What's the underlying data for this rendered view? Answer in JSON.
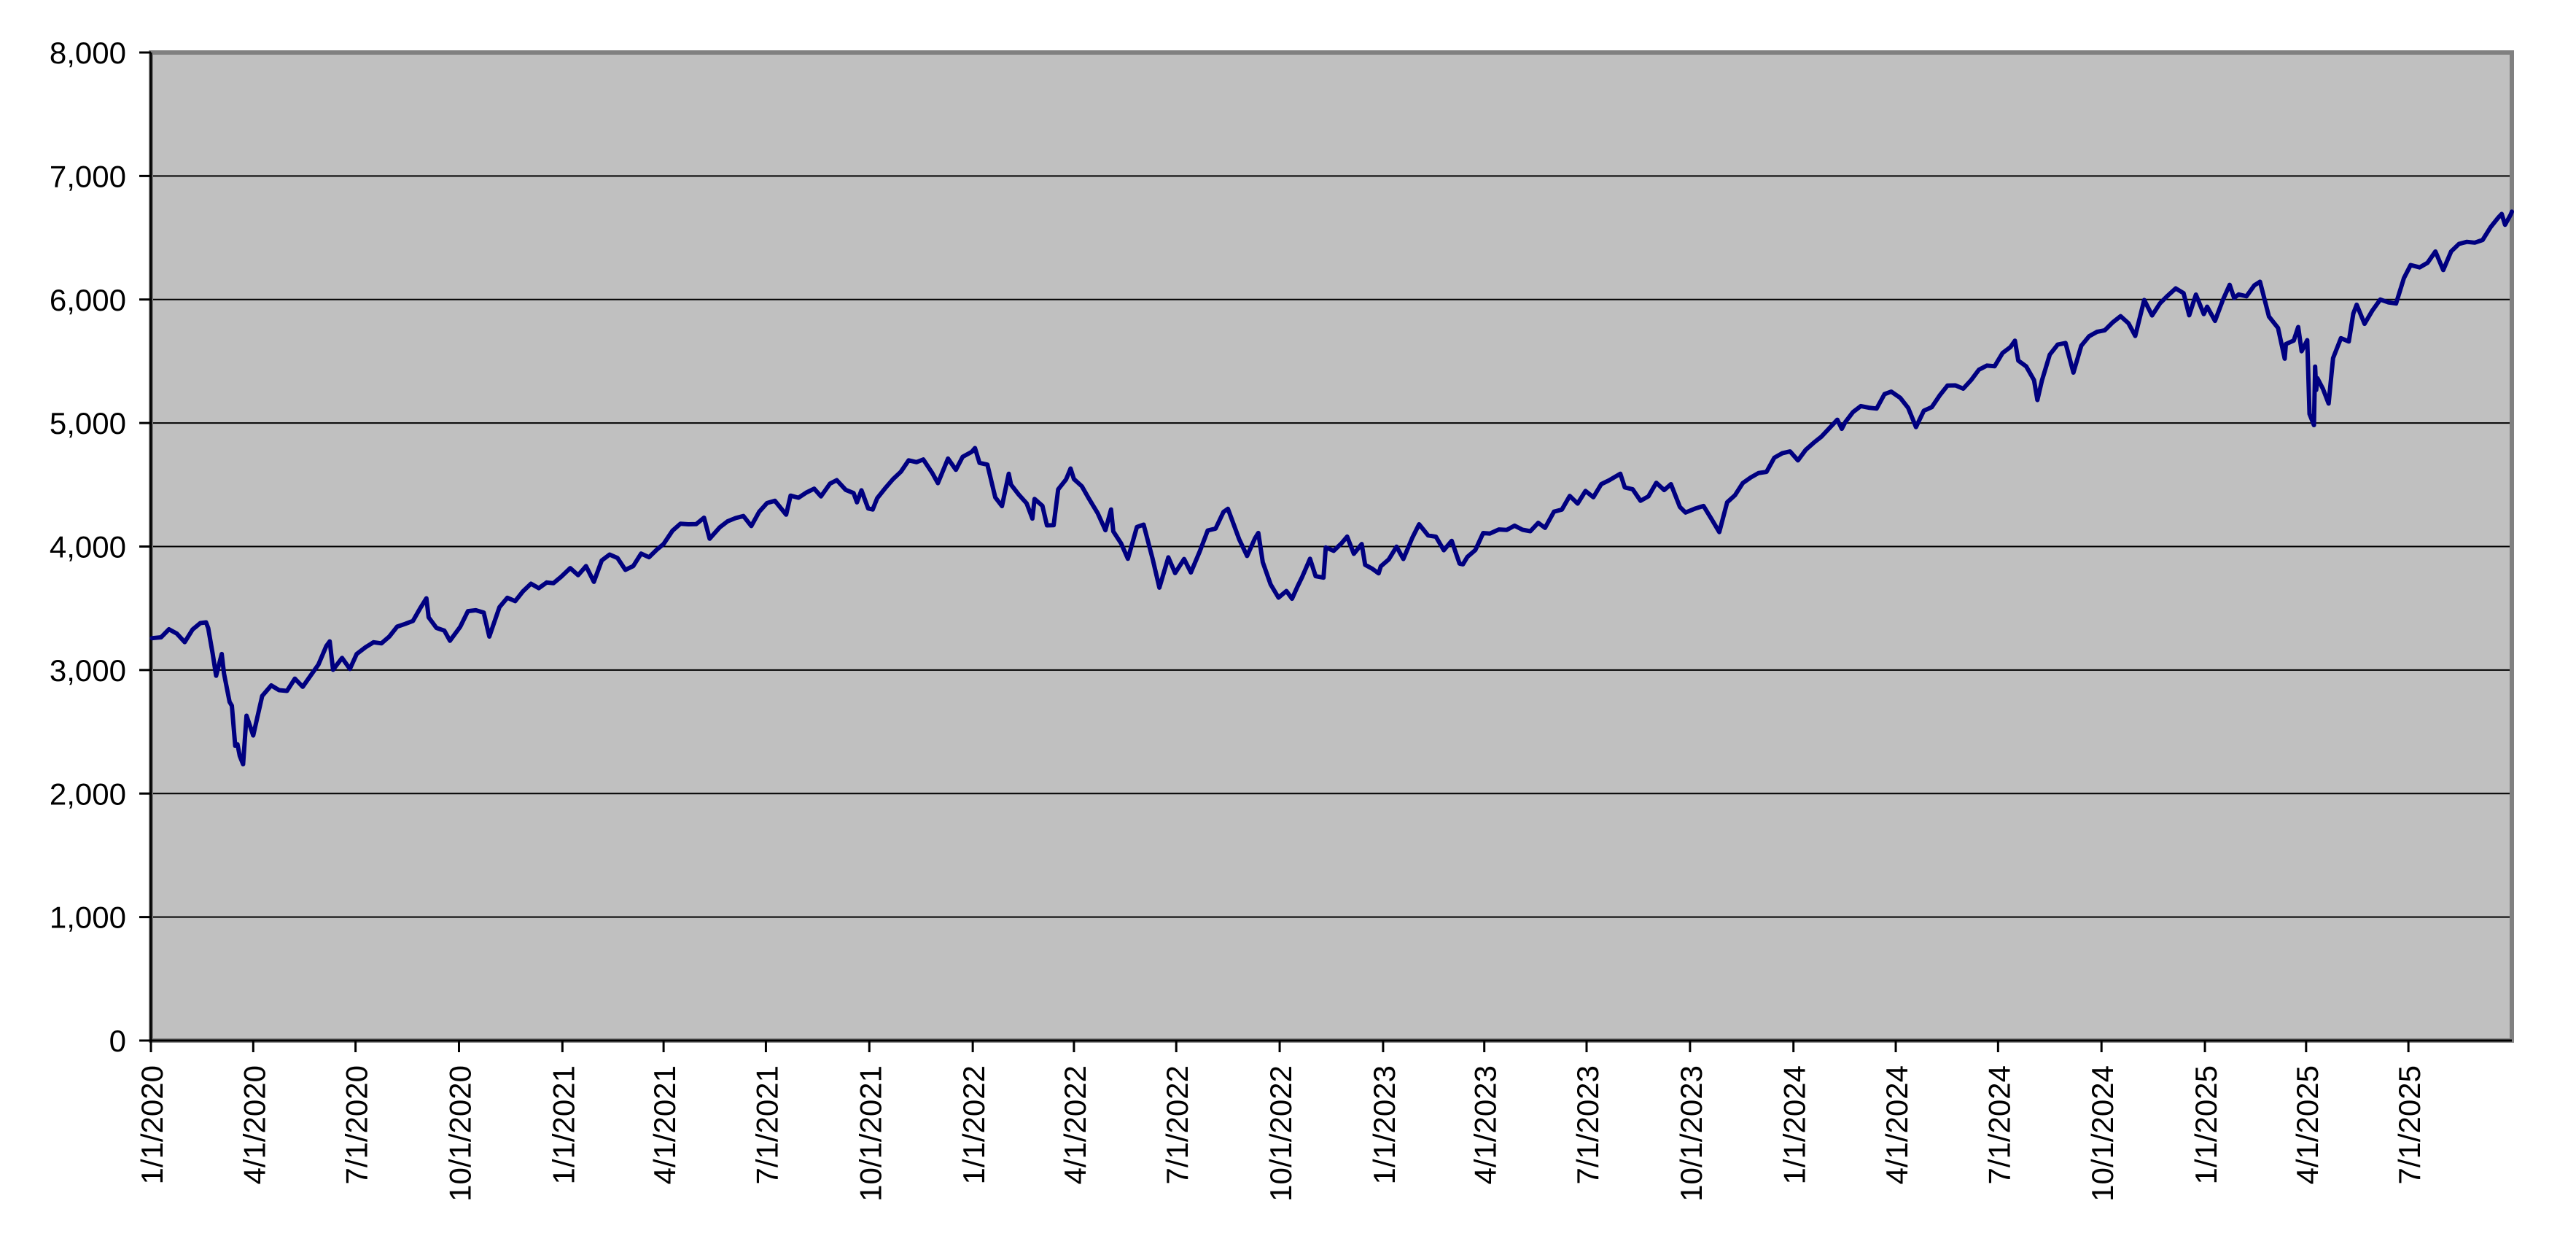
{
  "chart_data": {
    "type": "line",
    "grid": true,
    "legend": false,
    "ylim": [
      0,
      8000
    ],
    "xlim": [
      "1/1/2020",
      "10/1/2025"
    ],
    "y_ticks": [
      8000,
      7000,
      6000,
      5000,
      4000,
      3000,
      2000,
      1000,
      0
    ],
    "y_tick_labels": [
      "8,000",
      "7,000",
      "6,000",
      "5,000",
      "4,000",
      "3,000",
      "2,000",
      "1,000",
      "0"
    ],
    "x_tick_labels": [
      "1/1/2020",
      "4/1/2020",
      "7/1/2020",
      "10/1/2020",
      "1/1/2021",
      "4/1/2021",
      "7/1/2021",
      "10/1/2021",
      "1/1/2022",
      "4/1/2022",
      "7/1/2022",
      "10/1/2022",
      "1/1/2023",
      "4/1/2023",
      "7/1/2023",
      "10/1/2023",
      "1/1/2024",
      "4/1/2024",
      "7/1/2024",
      "10/1/2024",
      "1/1/2025",
      "4/1/2025",
      "7/1/2025"
    ],
    "colors": {
      "line": "#000080",
      "plot_bg": "#C0C0C0",
      "plot_border": "#808080",
      "gridline": "#000000",
      "axis": "#000000",
      "label": "#000000",
      "page_bg": "#FFFFFF"
    },
    "points": [
      [
        "1/2/2020",
        3258
      ],
      [
        "1/10/2020",
        3265
      ],
      [
        "1/17/2020",
        3330
      ],
      [
        "1/24/2020",
        3295
      ],
      [
        "1/31/2020",
        3226
      ],
      [
        "2/7/2020",
        3328
      ],
      [
        "2/14/2020",
        3380
      ],
      [
        "2/19/2020",
        3386
      ],
      [
        "2/21/2020",
        3338
      ],
      [
        "2/25/2020",
        3128
      ],
      [
        "2/28/2020",
        2954
      ],
      [
        "3/4/2020",
        3130
      ],
      [
        "3/6/2020",
        2972
      ],
      [
        "3/11/2020",
        2741
      ],
      [
        "3/13/2020",
        2711
      ],
      [
        "3/16/2020",
        2386
      ],
      [
        "3/18/2020",
        2398
      ],
      [
        "3/20/2020",
        2305
      ],
      [
        "3/23/2020",
        2237
      ],
      [
        "3/26/2020",
        2630
      ],
      [
        "4/1/2020",
        2470
      ],
      [
        "4/9/2020",
        2790
      ],
      [
        "4/17/2020",
        2875
      ],
      [
        "4/24/2020",
        2837
      ],
      [
        "5/1/2020",
        2831
      ],
      [
        "5/8/2020",
        2930
      ],
      [
        "5/15/2020",
        2864
      ],
      [
        "5/22/2020",
        2955
      ],
      [
        "5/29/2020",
        3044
      ],
      [
        "6/5/2020",
        3194
      ],
      [
        "6/8/2020",
        3232
      ],
      [
        "6/11/2020",
        3002
      ],
      [
        "6/19/2020",
        3098
      ],
      [
        "6/26/2020",
        3009
      ],
      [
        "7/2/2020",
        3130
      ],
      [
        "7/10/2020",
        3185
      ],
      [
        "7/17/2020",
        3225
      ],
      [
        "7/24/2020",
        3216
      ],
      [
        "7/31/2020",
        3271
      ],
      [
        "8/7/2020",
        3351
      ],
      [
        "8/14/2020",
        3373
      ],
      [
        "8/21/2020",
        3397
      ],
      [
        "8/28/2020",
        3508
      ],
      [
        "9/2/2020",
        3581
      ],
      [
        "9/4/2020",
        3427
      ],
      [
        "9/11/2020",
        3341
      ],
      [
        "9/18/2020",
        3319
      ],
      [
        "9/23/2020",
        3237
      ],
      [
        "10/2/2020",
        3348
      ],
      [
        "10/9/2020",
        3477
      ],
      [
        "10/16/2020",
        3484
      ],
      [
        "10/23/2020",
        3465
      ],
      [
        "10/28/2020",
        3271
      ],
      [
        "11/6/2020",
        3509
      ],
      [
        "11/13/2020",
        3585
      ],
      [
        "11/20/2020",
        3558
      ],
      [
        "11/27/2020",
        3638
      ],
      [
        "12/4/2020",
        3699
      ],
      [
        "12/11/2020",
        3663
      ],
      [
        "12/18/2020",
        3709
      ],
      [
        "12/24/2020",
        3703
      ],
      [
        "12/31/2020",
        3756
      ],
      [
        "1/8/2021",
        3825
      ],
      [
        "1/15/2021",
        3768
      ],
      [
        "1/22/2021",
        3841
      ],
      [
        "1/29/2021",
        3714
      ],
      [
        "2/5/2021",
        3887
      ],
      [
        "2/12/2021",
        3935
      ],
      [
        "2/19/2021",
        3907
      ],
      [
        "2/26/2021",
        3811
      ],
      [
        "3/5/2021",
        3842
      ],
      [
        "3/12/2021",
        3943
      ],
      [
        "3/19/2021",
        3913
      ],
      [
        "3/26/2021",
        3975
      ],
      [
        "4/1/2021",
        4020
      ],
      [
        "4/9/2021",
        4129
      ],
      [
        "4/16/2021",
        4185
      ],
      [
        "4/23/2021",
        4180
      ],
      [
        "4/30/2021",
        4181
      ],
      [
        "5/7/2021",
        4233
      ],
      [
        "5/12/2021",
        4063
      ],
      [
        "5/21/2021",
        4156
      ],
      [
        "5/28/2021",
        4204
      ],
      [
        "6/4/2021",
        4230
      ],
      [
        "6/11/2021",
        4247
      ],
      [
        "6/18/2021",
        4166
      ],
      [
        "6/25/2021",
        4281
      ],
      [
        "7/2/2021",
        4352
      ],
      [
        "7/9/2021",
        4370
      ],
      [
        "7/19/2021",
        4258
      ],
      [
        "7/23/2021",
        4412
      ],
      [
        "7/30/2021",
        4395
      ],
      [
        "8/6/2021",
        4437
      ],
      [
        "8/13/2021",
        4468
      ],
      [
        "8/19/2021",
        4406
      ],
      [
        "8/27/2021",
        4509
      ],
      [
        "9/2/2021",
        4537
      ],
      [
        "9/10/2021",
        4459
      ],
      [
        "9/17/2021",
        4433
      ],
      [
        "9/20/2021",
        4358
      ],
      [
        "9/24/2021",
        4455
      ],
      [
        "9/30/2021",
        4308
      ],
      [
        "10/4/2021",
        4300
      ],
      [
        "10/8/2021",
        4391
      ],
      [
        "10/15/2021",
        4471
      ],
      [
        "10/22/2021",
        4545
      ],
      [
        "10/29/2021",
        4605
      ],
      [
        "11/5/2021",
        4698
      ],
      [
        "11/12/2021",
        4683
      ],
      [
        "11/18/2021",
        4705
      ],
      [
        "11/26/2021",
        4595
      ],
      [
        "12/1/2021",
        4513
      ],
      [
        "12/10/2021",
        4712
      ],
      [
        "12/17/2021",
        4621
      ],
      [
        "12/23/2021",
        4726
      ],
      [
        "12/31/2021",
        4766
      ],
      [
        "1/3/2022",
        4797
      ],
      [
        "1/7/2022",
        4677
      ],
      [
        "1/14/2022",
        4663
      ],
      [
        "1/21/2022",
        4398
      ],
      [
        "1/27/2022",
        4327
      ],
      [
        "2/2/2022",
        4589
      ],
      [
        "2/4/2022",
        4501
      ],
      [
        "2/11/2022",
        4419
      ],
      [
        "2/18/2022",
        4349
      ],
      [
        "2/23/2022",
        4226
      ],
      [
        "2/25/2022",
        4385
      ],
      [
        "3/4/2022",
        4329
      ],
      [
        "3/8/2022",
        4171
      ],
      [
        "3/14/2022",
        4173
      ],
      [
        "3/18/2022",
        4463
      ],
      [
        "3/25/2022",
        4543
      ],
      [
        "3/29/2022",
        4632
      ],
      [
        "4/1/2022",
        4546
      ],
      [
        "4/8/2022",
        4488
      ],
      [
        "4/14/2022",
        4393
      ],
      [
        "4/22/2022",
        4272
      ],
      [
        "4/29/2022",
        4132
      ],
      [
        "5/4/2022",
        4300
      ],
      [
        "5/6/2022",
        4123
      ],
      [
        "5/13/2022",
        4024
      ],
      [
        "5/19/2022",
        3901
      ],
      [
        "5/27/2022",
        4158
      ],
      [
        "6/2/2022",
        4177
      ],
      [
        "6/10/2022",
        3901
      ],
      [
        "6/16/2022",
        3667
      ],
      [
        "6/24/2022",
        3912
      ],
      [
        "6/30/2022",
        3785
      ],
      [
        "7/8/2022",
        3899
      ],
      [
        "7/14/2022",
        3790
      ],
      [
        "7/22/2022",
        3962
      ],
      [
        "7/29/2022",
        4130
      ],
      [
        "8/5/2022",
        4145
      ],
      [
        "8/12/2022",
        4280
      ],
      [
        "8/16/2022",
        4305
      ],
      [
        "8/26/2022",
        4058
      ],
      [
        "9/2/2022",
        3924
      ],
      [
        "9/9/2022",
        4067
      ],
      [
        "9/12/2022",
        4110
      ],
      [
        "9/16/2022",
        3873
      ],
      [
        "9/23/2022",
        3693
      ],
      [
        "9/30/2022",
        3586
      ],
      [
        "10/7/2022",
        3640
      ],
      [
        "10/12/2022",
        3577
      ],
      [
        "10/17/2022",
        3678
      ],
      [
        "10/21/2022",
        3753
      ],
      [
        "10/28/2022",
        3901
      ],
      [
        "11/2/2022",
        3760
      ],
      [
        "11/9/2022",
        3748
      ],
      [
        "11/11/2022",
        3993
      ],
      [
        "11/18/2022",
        3965
      ],
      [
        "11/25/2022",
        4026
      ],
      [
        "11/30/2022",
        4080
      ],
      [
        "12/6/2022",
        3941
      ],
      [
        "12/13/2022",
        4020
      ],
      [
        "12/16/2022",
        3852
      ],
      [
        "12/22/2022",
        3822
      ],
      [
        "12/28/2022",
        3783
      ],
      [
        "12/30/2022",
        3840
      ],
      [
        "1/6/2023",
        3895
      ],
      [
        "1/13/2023",
        3999
      ],
      [
        "1/19/2023",
        3899
      ],
      [
        "1/27/2023",
        4071
      ],
      [
        "2/2/2023",
        4180
      ],
      [
        "2/10/2023",
        4090
      ],
      [
        "2/17/2023",
        4079
      ],
      [
        "2/24/2023",
        3970
      ],
      [
        "3/3/2023",
        4046
      ],
      [
        "3/10/2023",
        3862
      ],
      [
        "3/13/2023",
        3856
      ],
      [
        "3/17/2023",
        3917
      ],
      [
        "3/24/2023",
        3971
      ],
      [
        "3/31/2023",
        4109
      ],
      [
        "4/6/2023",
        4105
      ],
      [
        "4/14/2023",
        4138
      ],
      [
        "4/21/2023",
        4134
      ],
      [
        "4/28/2023",
        4169
      ],
      [
        "5/5/2023",
        4136
      ],
      [
        "5/12/2023",
        4124
      ],
      [
        "5/19/2023",
        4192
      ],
      [
        "5/25/2023",
        4151
      ],
      [
        "6/2/2023",
        4282
      ],
      [
        "6/9/2023",
        4299
      ],
      [
        "6/16/2023",
        4410
      ],
      [
        "6/23/2023",
        4348
      ],
      [
        "6/30/2023",
        4450
      ],
      [
        "7/7/2023",
        4399
      ],
      [
        "7/14/2023",
        4505
      ],
      [
        "7/21/2023",
        4536
      ],
      [
        "7/31/2023",
        4589
      ],
      [
        "8/4/2023",
        4478
      ],
      [
        "8/11/2023",
        4464
      ],
      [
        "8/18/2023",
        4370
      ],
      [
        "8/25/2023",
        4406
      ],
      [
        "9/1/2023",
        4516
      ],
      [
        "9/8/2023",
        4457
      ],
      [
        "9/14/2023",
        4505
      ],
      [
        "9/22/2023",
        4320
      ],
      [
        "9/27/2023",
        4275
      ],
      [
        "10/6/2023",
        4309
      ],
      [
        "10/13/2023",
        4328
      ],
      [
        "10/20/2023",
        4224
      ],
      [
        "10/27/2023",
        4117
      ],
      [
        "11/3/2023",
        4358
      ],
      [
        "11/10/2023",
        4415
      ],
      [
        "11/17/2023",
        4514
      ],
      [
        "11/24/2023",
        4559
      ],
      [
        "12/1/2023",
        4595
      ],
      [
        "12/8/2023",
        4604
      ],
      [
        "12/15/2023",
        4719
      ],
      [
        "12/22/2023",
        4755
      ],
      [
        "12/29/2023",
        4770
      ],
      [
        "1/5/2024",
        4697
      ],
      [
        "1/12/2024",
        4784
      ],
      [
        "1/19/2024",
        4840
      ],
      [
        "1/26/2024",
        4891
      ],
      [
        "2/2/2024",
        4959
      ],
      [
        "2/9/2024",
        5027
      ],
      [
        "2/13/2024",
        4953
      ],
      [
        "2/16/2024",
        5006
      ],
      [
        "2/23/2024",
        5089
      ],
      [
        "3/1/2024",
        5137
      ],
      [
        "3/8/2024",
        5124
      ],
      [
        "3/15/2024",
        5117
      ],
      [
        "3/22/2024",
        5234
      ],
      [
        "3/28/2024",
        5254
      ],
      [
        "4/5/2024",
        5204
      ],
      [
        "4/12/2024",
        5123
      ],
      [
        "4/19/2024",
        4967
      ],
      [
        "4/26/2024",
        5100
      ],
      [
        "5/3/2024",
        5128
      ],
      [
        "5/10/2024",
        5223
      ],
      [
        "5/17/2024",
        5303
      ],
      [
        "5/24/2024",
        5305
      ],
      [
        "5/31/2024",
        5278
      ],
      [
        "6/7/2024",
        5347
      ],
      [
        "6/14/2024",
        5432
      ],
      [
        "6/21/2024",
        5465
      ],
      [
        "6/28/2024",
        5460
      ],
      [
        "7/5/2024",
        5567
      ],
      [
        "7/12/2024",
        5615
      ],
      [
        "7/16/2024",
        5667
      ],
      [
        "7/19/2024",
        5505
      ],
      [
        "7/26/2024",
        5459
      ],
      [
        "8/2/2024",
        5347
      ],
      [
        "8/5/2024",
        5186
      ],
      [
        "8/9/2024",
        5344
      ],
      [
        "8/16/2024",
        5554
      ],
      [
        "8/23/2024",
        5635
      ],
      [
        "8/30/2024",
        5648
      ],
      [
        "9/6/2024",
        5408
      ],
      [
        "9/13/2024",
        5626
      ],
      [
        "9/20/2024",
        5703
      ],
      [
        "9/27/2024",
        5738
      ],
      [
        "10/4/2024",
        5751
      ],
      [
        "10/11/2024",
        5815
      ],
      [
        "10/18/2024",
        5865
      ],
      [
        "10/25/2024",
        5808
      ],
      [
        "10/31/2024",
        5705
      ],
      [
        "11/8/2024",
        5996
      ],
      [
        "11/15/2024",
        5871
      ],
      [
        "11/22/2024",
        5969
      ],
      [
        "11/29/2024",
        6032
      ],
      [
        "12/6/2024",
        6090
      ],
      [
        "12/13/2024",
        6051
      ],
      [
        "12/18/2024",
        5872
      ],
      [
        "12/24/2024",
        6040
      ],
      [
        "12/31/2024",
        5882
      ],
      [
        "1/3/2025",
        5942
      ],
      [
        "1/10/2025",
        5827
      ],
      [
        "1/17/2025",
        5997
      ],
      [
        "1/23/2025",
        6119
      ],
      [
        "1/27/2025",
        6012
      ],
      [
        "1/31/2025",
        6041
      ],
      [
        "2/7/2025",
        6026
      ],
      [
        "2/14/2025",
        6115
      ],
      [
        "2/19/2025",
        6144
      ],
      [
        "2/27/2025",
        5862
      ],
      [
        "3/7/2025",
        5770
      ],
      [
        "3/13/2025",
        5521
      ],
      [
        "3/14/2025",
        5639
      ],
      [
        "3/21/2025",
        5668
      ],
      [
        "3/25/2025",
        5777
      ],
      [
        "3/28/2025",
        5581
      ],
      [
        "4/2/2025",
        5671
      ],
      [
        "4/4/2025",
        5074
      ],
      [
        "4/8/2025",
        4983
      ],
      [
        "4/9/2025",
        5457
      ],
      [
        "4/10/2025",
        5268
      ],
      [
        "4/11/2025",
        5363
      ],
      [
        "4/16/2025",
        5276
      ],
      [
        "4/21/2025",
        5158
      ],
      [
        "4/25/2025",
        5525
      ],
      [
        "5/2/2025",
        5687
      ],
      [
        "5/9/2025",
        5660
      ],
      [
        "5/13/2025",
        5887
      ],
      [
        "5/16/2025",
        5958
      ],
      [
        "5/23/2025",
        5803
      ],
      [
        "5/30/2025",
        5912
      ],
      [
        "6/6/2025",
        6000
      ],
      [
        "6/13/2025",
        5977
      ],
      [
        "6/20/2025",
        5968
      ],
      [
        "6/27/2025",
        6173
      ],
      [
        "7/3/2025",
        6279
      ],
      [
        "7/11/2025",
        6260
      ],
      [
        "7/18/2025",
        6297
      ],
      [
        "7/25/2025",
        6389
      ],
      [
        "8/1/2025",
        6238
      ],
      [
        "8/8/2025",
        6389
      ],
      [
        "8/15/2025",
        6450
      ],
      [
        "8/22/2025",
        6467
      ],
      [
        "8/29/2025",
        6460
      ],
      [
        "9/5/2025",
        6482
      ],
      [
        "9/12/2025",
        6584
      ],
      [
        "9/19/2025",
        6664
      ],
      [
        "9/22/2025",
        6693
      ],
      [
        "9/25/2025",
        6605
      ],
      [
        "9/30/2025",
        6688
      ],
      [
        "10/1/2025",
        6711
      ]
    ]
  }
}
